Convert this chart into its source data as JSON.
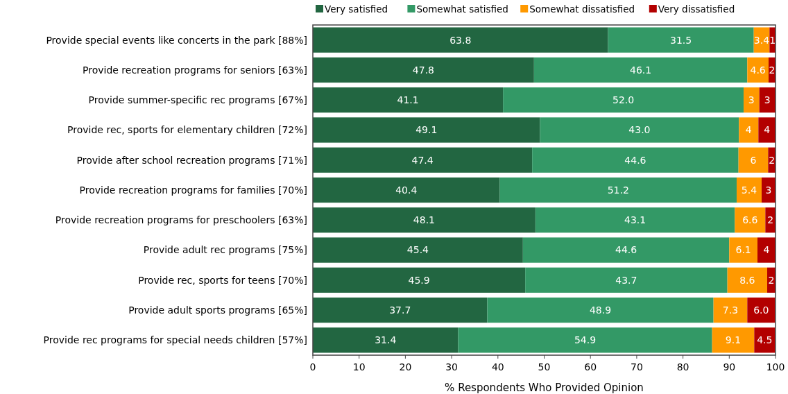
{
  "chart_data": {
    "type": "bar",
    "orientation": "horizontal",
    "stacked": true,
    "xlabel": "% Respondents Who Provided Opinion",
    "categories": [
      "Provide special events like concerts in the park [88%]",
      "Provide recreation programs for seniors [63%]",
      "Provide summer-specific rec programs [67%]",
      "Provide rec, sports for elementary children [72%]",
      "Provide after school recreation programs [71%]",
      "Provide recreation programs for families [70%]",
      "Provide recreation programs for preschoolers [63%]",
      "Provide adult rec programs [75%]",
      "Provide rec, sports for teens [70%]",
      "Provide adult sports programs [65%]",
      "Provide rec programs for special needs children [57%]"
    ],
    "series": [
      {
        "name": "Very satisfied",
        "color": "#226641",
        "values": [
          63.8,
          47.8,
          41.1,
          49.1,
          47.4,
          40.4,
          48.1,
          45.4,
          45.9,
          37.7,
          31.4
        ],
        "value_labels": [
          "63.8",
          "47.8",
          "41.1",
          "49.1",
          "47.4",
          "40.4",
          "48.1",
          "45.4",
          "45.9",
          "37.7",
          "31.4"
        ]
      },
      {
        "name": "Somewhat satisfied",
        "color": "#339966",
        "values": [
          31.5,
          46.1,
          52.0,
          43.0,
          44.6,
          51.2,
          43.1,
          44.6,
          43.7,
          48.9,
          54.9
        ],
        "value_labels": [
          "31.5",
          "46.1",
          "52.0",
          "43.0",
          "44.6",
          "51.2",
          "43.1",
          "44.6",
          "43.7",
          "48.9",
          "54.9"
        ]
      },
      {
        "name": "Somewhat dissatisfied",
        "color": "#ff9900",
        "values": [
          3.4,
          4.6,
          3.4,
          4.2,
          6.4,
          5.4,
          6.6,
          6.1,
          8.6,
          7.3,
          9.1
        ],
        "value_labels": [
          "3.4",
          "4.6",
          "3",
          "4",
          "6",
          "5.4",
          "6.6",
          "6.1",
          "8.6",
          "7.3",
          "9.1"
        ]
      },
      {
        "name": "Very dissatisfied",
        "color": "#b30000",
        "values": [
          1.3,
          1.5,
          3.5,
          3.7,
          1.6,
          3.0,
          2.2,
          3.9,
          1.8,
          6.0,
          4.5
        ],
        "value_labels": [
          "1",
          "2",
          "3",
          "4",
          "2",
          "3",
          "2",
          "4",
          "2",
          "6.0",
          "4.5"
        ]
      }
    ],
    "xlim": [
      0,
      100
    ],
    "xticks": [
      0,
      10,
      20,
      30,
      40,
      50,
      60,
      70,
      80,
      90,
      100
    ],
    "grid": false,
    "legend": "top"
  }
}
